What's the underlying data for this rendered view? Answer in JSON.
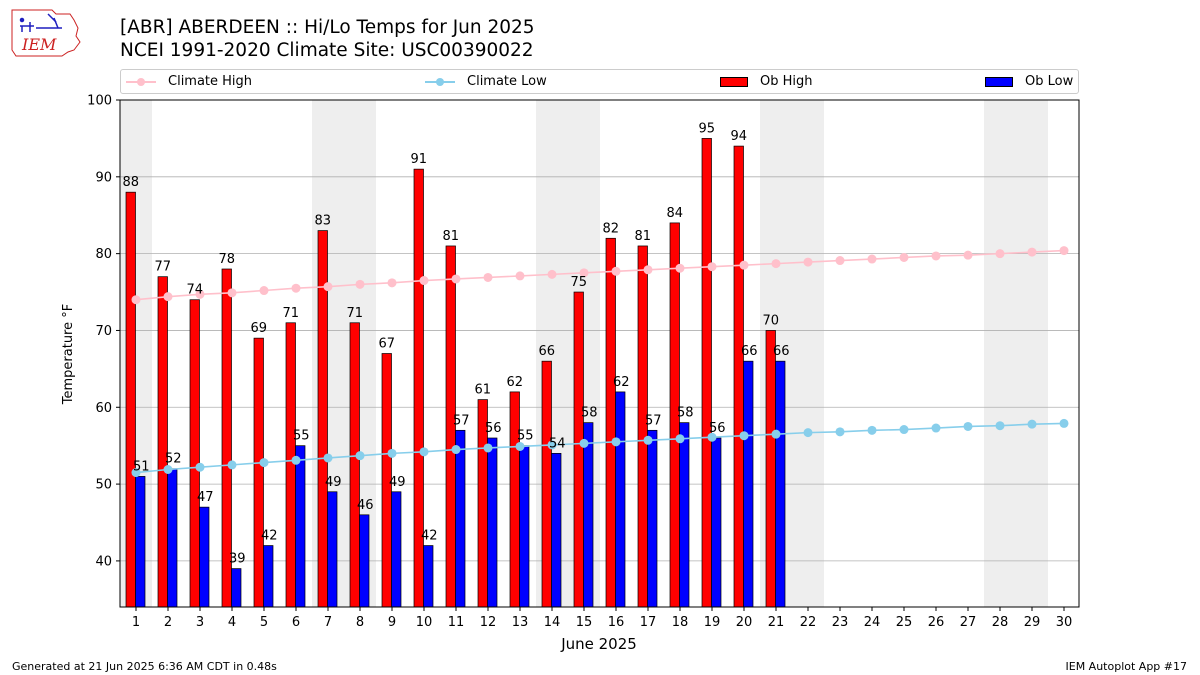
{
  "title_line1": "[ABR] ABERDEEN :: Hi/Lo Temps for Jun 2025",
  "title_line2": "NCEI 1991-2020 Climate Site: USC00390022",
  "logo_text": "IEM",
  "footer_left": "Generated at 21 Jun 2025 6:36 AM CDT in 0.48s",
  "footer_right": "IEM Autoplot App #17",
  "colors": {
    "climate_high": "#ffc0cb",
    "climate_low": "#87ceeb",
    "ob_high": "#ff0000",
    "ob_low": "#0000ff",
    "weekend_shade": "#eeeeee",
    "grid": "#b0b0b0",
    "logo": "#cc2222"
  },
  "chart_data": {
    "type": "bar",
    "xlabel": "June 2025",
    "ylabel": "Temperature °F",
    "ylim": [
      34,
      100
    ],
    "yticks": [
      40,
      50,
      60,
      70,
      80,
      90,
      100
    ],
    "grid": "horizontal",
    "legend_placement": "top",
    "days": [
      1,
      2,
      3,
      4,
      5,
      6,
      7,
      8,
      9,
      10,
      11,
      12,
      13,
      14,
      15,
      16,
      17,
      18,
      19,
      20,
      21,
      22,
      23,
      24,
      25,
      26,
      27,
      28,
      29,
      30
    ],
    "shaded_weekend_days": [
      1,
      7,
      8,
      14,
      15,
      21,
      22,
      28,
      29
    ],
    "series": [
      {
        "name": "Ob High",
        "kind": "bar",
        "values": [
          88,
          77,
          74,
          78,
          69,
          71,
          83,
          71,
          67,
          91,
          81,
          61,
          62,
          66,
          75,
          82,
          81,
          84,
          95,
          94,
          70
        ]
      },
      {
        "name": "Ob Low",
        "kind": "bar",
        "values": [
          51,
          52,
          47,
          39,
          42,
          55,
          49,
          46,
          49,
          42,
          57,
          56,
          55,
          54,
          58,
          62,
          57,
          58,
          56,
          66,
          66
        ]
      },
      {
        "name": "Climate High",
        "kind": "line",
        "values": [
          74.0,
          74.4,
          74.7,
          74.9,
          75.2,
          75.5,
          75.7,
          76.0,
          76.2,
          76.5,
          76.7,
          76.9,
          77.1,
          77.3,
          77.5,
          77.7,
          77.9,
          78.1,
          78.3,
          78.5,
          78.7,
          78.9,
          79.1,
          79.3,
          79.5,
          79.7,
          79.8,
          80.0,
          80.2,
          80.4
        ]
      },
      {
        "name": "Climate Low",
        "kind": "line",
        "values": [
          51.5,
          51.9,
          52.2,
          52.5,
          52.8,
          53.1,
          53.4,
          53.7,
          54.0,
          54.2,
          54.5,
          54.7,
          54.9,
          55.1,
          55.3,
          55.5,
          55.7,
          55.9,
          56.1,
          56.3,
          56.5,
          56.7,
          56.8,
          57.0,
          57.1,
          57.3,
          57.5,
          57.6,
          57.8,
          57.9
        ]
      }
    ]
  }
}
